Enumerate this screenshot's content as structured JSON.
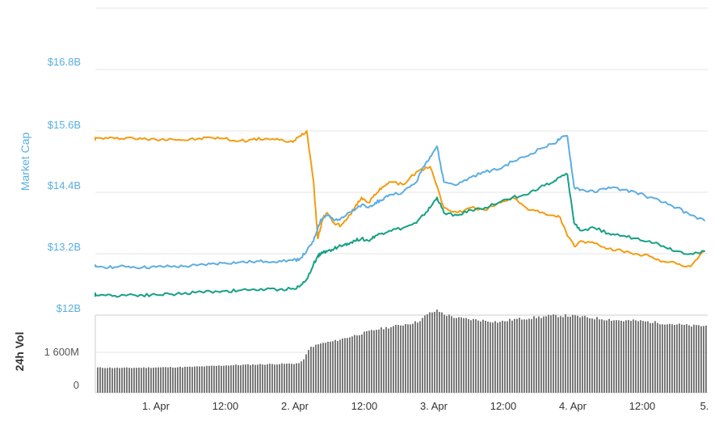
{
  "chart_data": [
    {
      "type": "line",
      "ylabel": "Market Cap",
      "y_tick_labels": [
        "$12B",
        "$13.2B",
        "$14.4B",
        "$15.6B",
        "$16.8B"
      ],
      "y_tick_values": [
        12.0,
        13.2,
        14.4,
        15.6,
        16.8
      ],
      "ylim": [
        12.0,
        17.9
      ],
      "x_tick_labels": [
        "1. Apr",
        "12:00",
        "2. Apr",
        "12:00",
        "3. Apr",
        "12:00",
        "4. Apr",
        "12:00",
        "5."
      ],
      "x_tick_values": [
        0.5,
        1.0,
        1.5,
        2.0,
        2.5,
        3.0,
        3.5,
        4.0,
        4.5
      ],
      "xlim": [
        0.0,
        4.5
      ],
      "grid": true,
      "series": [
        {
          "color": "#f39c12",
          "x": [
            0,
            0.1,
            0.2,
            0.3,
            0.4,
            0.5,
            0.6,
            0.7,
            0.8,
            0.9,
            1.0,
            1.1,
            1.2,
            1.3,
            1.4,
            1.5,
            1.55,
            1.6,
            1.65,
            1.68,
            1.7,
            1.72,
            1.75,
            1.8,
            1.85,
            1.9,
            1.95,
            2.0,
            2.05,
            2.1,
            2.15,
            2.2,
            2.3,
            2.4,
            2.5,
            2.6,
            2.7,
            2.8,
            2.9,
            3.0,
            3.1,
            3.2,
            3.3,
            3.4,
            3.45,
            3.5,
            3.55,
            3.6,
            3.7,
            3.8,
            3.9,
            4.0,
            4.1,
            4.2,
            4.3,
            4.4,
            4.5
          ],
          "values": [
            15.45,
            15.46,
            15.45,
            15.47,
            15.44,
            15.43,
            15.45,
            15.42,
            15.44,
            15.47,
            15.45,
            15.4,
            15.43,
            15.45,
            15.42,
            15.38,
            15.5,
            15.6,
            14.6,
            13.5,
            13.7,
            13.9,
            14.0,
            13.8,
            13.75,
            13.9,
            14.1,
            14.3,
            14.2,
            14.35,
            14.5,
            14.6,
            14.55,
            14.8,
            14.9,
            14.1,
            14.0,
            14.1,
            14.05,
            14.2,
            14.3,
            14.1,
            14.0,
            13.95,
            13.9,
            13.55,
            13.35,
            13.45,
            13.4,
            13.3,
            13.25,
            13.2,
            13.15,
            13.05,
            13.0,
            12.95,
            13.25
          ]
        },
        {
          "color": "#5dade2",
          "x": [
            0,
            0.1,
            0.2,
            0.3,
            0.4,
            0.5,
            0.6,
            0.7,
            0.8,
            0.9,
            1.0,
            1.1,
            1.2,
            1.3,
            1.4,
            1.5,
            1.55,
            1.6,
            1.65,
            1.68,
            1.7,
            1.72,
            1.75,
            1.8,
            1.85,
            1.9,
            1.95,
            2.0,
            2.05,
            2.1,
            2.15,
            2.2,
            2.3,
            2.4,
            2.45,
            2.5,
            2.55,
            2.6,
            2.7,
            2.8,
            2.9,
            3.0,
            3.1,
            3.2,
            3.3,
            3.4,
            3.45,
            3.5,
            3.55,
            3.6,
            3.7,
            3.8,
            3.9,
            4.0,
            4.1,
            4.2,
            4.3,
            4.4,
            4.5
          ],
          "values": [
            12.95,
            12.95,
            12.94,
            12.95,
            12.93,
            12.94,
            12.95,
            12.95,
            12.97,
            13.0,
            13.02,
            13.03,
            13.04,
            13.05,
            13.06,
            13.07,
            13.1,
            13.25,
            13.45,
            13.7,
            13.85,
            13.9,
            13.95,
            13.85,
            13.9,
            14.0,
            14.05,
            14.15,
            14.1,
            14.2,
            14.25,
            14.35,
            14.4,
            14.6,
            14.9,
            15.1,
            15.3,
            14.6,
            14.55,
            14.7,
            14.8,
            14.85,
            15.0,
            15.1,
            15.25,
            15.35,
            15.45,
            15.5,
            14.5,
            14.45,
            14.4,
            14.5,
            14.45,
            14.4,
            14.3,
            14.2,
            14.1,
            13.95,
            13.85
          ]
        },
        {
          "color": "#16a085",
          "x": [
            0,
            0.1,
            0.2,
            0.3,
            0.4,
            0.5,
            0.6,
            0.7,
            0.8,
            0.9,
            1.0,
            1.1,
            1.2,
            1.3,
            1.4,
            1.5,
            1.55,
            1.6,
            1.65,
            1.68,
            1.7,
            1.72,
            1.75,
            1.8,
            1.85,
            1.9,
            1.95,
            2.0,
            2.05,
            2.1,
            2.15,
            2.2,
            2.3,
            2.4,
            2.45,
            2.5,
            2.55,
            2.6,
            2.7,
            2.8,
            2.9,
            3.0,
            3.1,
            3.2,
            3.3,
            3.4,
            3.45,
            3.5,
            3.55,
            3.6,
            3.7,
            3.8,
            3.9,
            4.0,
            4.1,
            4.2,
            4.3,
            4.4,
            4.5
          ],
          "values": [
            12.4,
            12.4,
            12.38,
            12.4,
            12.39,
            12.4,
            12.41,
            12.42,
            12.45,
            12.46,
            12.47,
            12.48,
            12.5,
            12.5,
            12.5,
            12.52,
            12.56,
            12.7,
            13.0,
            13.15,
            13.2,
            13.22,
            13.25,
            13.3,
            13.35,
            13.4,
            13.45,
            13.5,
            13.45,
            13.55,
            13.6,
            13.65,
            13.7,
            13.8,
            13.95,
            14.1,
            14.3,
            14.0,
            13.95,
            14.05,
            14.1,
            14.2,
            14.3,
            14.35,
            14.5,
            14.6,
            14.7,
            14.75,
            13.8,
            13.65,
            13.7,
            13.6,
            13.55,
            13.5,
            13.45,
            13.35,
            13.25,
            13.2,
            13.25
          ]
        }
      ]
    },
    {
      "type": "bar",
      "ylabel": "24h Vol",
      "y_tick_labels": [
        "0",
        "1 600M"
      ],
      "y_tick_values": [
        0,
        1600
      ],
      "ylim": [
        0,
        3500
      ],
      "bar_color": "#7a7a7a",
      "x": [
        0,
        0.25,
        0.5,
        0.75,
        1.0,
        1.25,
        1.5,
        1.55,
        1.58,
        1.62,
        1.7,
        1.8,
        1.9,
        2.0,
        2.1,
        2.2,
        2.3,
        2.4,
        2.45,
        2.5,
        2.55,
        2.6,
        2.7,
        2.8,
        2.9,
        3.0,
        3.1,
        3.2,
        3.3,
        3.4,
        3.5,
        3.6,
        3.7,
        3.8,
        3.9,
        4.0,
        4.1,
        4.2,
        4.3,
        4.4,
        4.5
      ],
      "values": [
        1000,
        980,
        1000,
        1020,
        1080,
        1120,
        1150,
        1180,
        1400,
        1800,
        1950,
        2050,
        2200,
        2350,
        2500,
        2600,
        2700,
        2800,
        3000,
        3180,
        3250,
        3100,
        2950,
        2900,
        2850,
        2800,
        2900,
        2950,
        3000,
        3050,
        3050,
        3000,
        2950,
        2900,
        2850,
        2850,
        2800,
        2750,
        2700,
        2650,
        2650
      ]
    }
  ]
}
